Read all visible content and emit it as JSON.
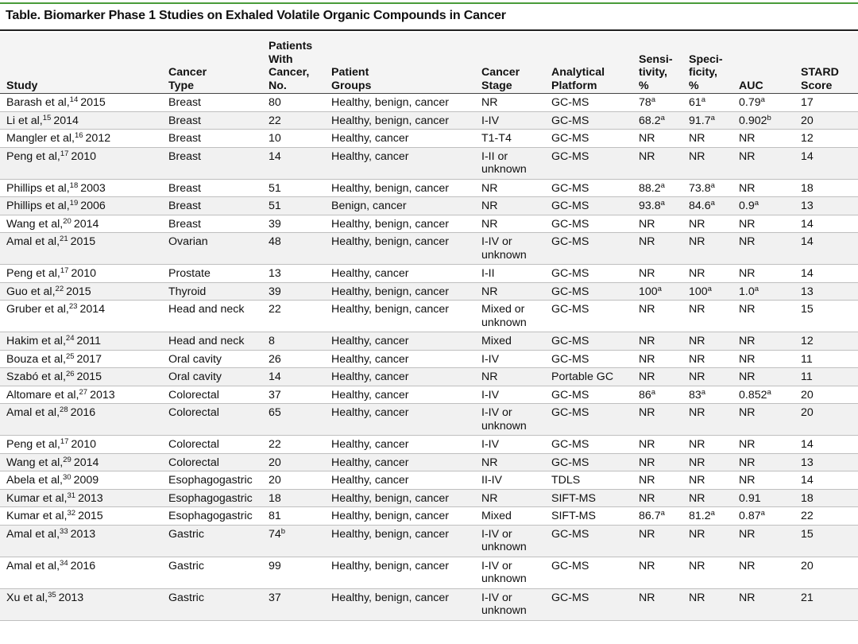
{
  "title": "Table. Biomarker Phase 1 Studies on Exhaled Volatile Organic Compounds in Cancer",
  "headers": [
    "Study",
    "Cancer\nType",
    "Patients\nWith\nCancer,\nNo.",
    "Patient\nGroups",
    "Cancer\nStage",
    "Analytical\nPlatform",
    "Sensi-\ntivity,\n%",
    "Speci-\nficity,\n%",
    "AUC",
    "STARD\nScore"
  ],
  "rows": [
    {
      "author": "Barash et al,",
      "ref": "14",
      "year": "2015",
      "type": "Breast",
      "patients": "80",
      "patients_sup": "",
      "groups": "Healthy, benign, cancer",
      "stage": "NR",
      "platform": "GC-MS",
      "sens": "78",
      "sens_sup": "a",
      "spec": "61",
      "spec_sup": "a",
      "auc": "0.79",
      "auc_sup": "a",
      "stard": "17"
    },
    {
      "author": "Li et al,",
      "ref": "15",
      "year": "2014",
      "type": "Breast",
      "patients": "22",
      "patients_sup": "",
      "groups": "Healthy, benign, cancer",
      "stage": "I-IV",
      "platform": "GC-MS",
      "sens": "68.2",
      "sens_sup": "a",
      "spec": "91.7",
      "spec_sup": "a",
      "auc": "0.902",
      "auc_sup": "b",
      "stard": "20"
    },
    {
      "author": "Mangler et al,",
      "ref": "16",
      "year": "2012",
      "type": "Breast",
      "patients": "10",
      "patients_sup": "",
      "groups": "Healthy, cancer",
      "stage": "T1-T4",
      "platform": "GC-MS",
      "sens": "NR",
      "sens_sup": "",
      "spec": "NR",
      "spec_sup": "",
      "auc": "NR",
      "auc_sup": "",
      "stard": "12"
    },
    {
      "author": "Peng et al,",
      "ref": "17",
      "year": "2010",
      "type": "Breast",
      "patients": "14",
      "patients_sup": "",
      "groups": "Healthy, cancer",
      "stage": "I-II or\nunknown",
      "platform": "GC-MS",
      "sens": "NR",
      "sens_sup": "",
      "spec": "NR",
      "spec_sup": "",
      "auc": "NR",
      "auc_sup": "",
      "stard": "14"
    },
    {
      "author": "Phillips et al,",
      "ref": "18",
      "year": "2003",
      "type": "Breast",
      "patients": "51",
      "patients_sup": "",
      "groups": "Healthy, benign, cancer",
      "stage": "NR",
      "platform": "GC-MS",
      "sens": "88.2",
      "sens_sup": "a",
      "spec": "73.8",
      "spec_sup": "a",
      "auc": "NR",
      "auc_sup": "",
      "stard": "18"
    },
    {
      "author": "Phillips et al,",
      "ref": "19",
      "year": "2006",
      "type": "Breast",
      "patients": "51",
      "patients_sup": "",
      "groups": "Benign, cancer",
      "stage": "NR",
      "platform": "GC-MS",
      "sens": "93.8",
      "sens_sup": "a",
      "spec": "84.6",
      "spec_sup": "a",
      "auc": "0.9",
      "auc_sup": "a",
      "stard": "13"
    },
    {
      "author": "Wang et al,",
      "ref": "20",
      "year": "2014",
      "type": "Breast",
      "patients": "39",
      "patients_sup": "",
      "groups": "Healthy, benign, cancer",
      "stage": "NR",
      "platform": "GC-MS",
      "sens": "NR",
      "sens_sup": "",
      "spec": "NR",
      "spec_sup": "",
      "auc": "NR",
      "auc_sup": "",
      "stard": "14"
    },
    {
      "author": "Amal et al,",
      "ref": "21",
      "year": "2015",
      "type": "Ovarian",
      "patients": "48",
      "patients_sup": "",
      "groups": "Healthy, benign, cancer",
      "stage": "I-IV or\nunknown",
      "platform": "GC-MS",
      "sens": "NR",
      "sens_sup": "",
      "spec": "NR",
      "spec_sup": "",
      "auc": "NR",
      "auc_sup": "",
      "stard": "14"
    },
    {
      "author": "Peng et al,",
      "ref": "17",
      "year": "2010",
      "type": "Prostate",
      "patients": "13",
      "patients_sup": "",
      "groups": "Healthy, cancer",
      "stage": "I-II",
      "platform": "GC-MS",
      "sens": "NR",
      "sens_sup": "",
      "spec": "NR",
      "spec_sup": "",
      "auc": "NR",
      "auc_sup": "",
      "stard": "14"
    },
    {
      "author": "Guo et al,",
      "ref": "22",
      "year": "2015",
      "type": "Thyroid",
      "patients": "39",
      "patients_sup": "",
      "groups": "Healthy, benign, cancer",
      "stage": "NR",
      "platform": "GC-MS",
      "sens": "100",
      "sens_sup": "a",
      "spec": "100",
      "spec_sup": "a",
      "auc": "1.0",
      "auc_sup": "a",
      "stard": "13"
    },
    {
      "author": "Gruber et al,",
      "ref": "23",
      "year": "2014",
      "type": "Head and neck",
      "patients": "22",
      "patients_sup": "",
      "groups": "Healthy, benign, cancer",
      "stage": "Mixed or\nunknown",
      "platform": "GC-MS",
      "sens": "NR",
      "sens_sup": "",
      "spec": "NR",
      "spec_sup": "",
      "auc": "NR",
      "auc_sup": "",
      "stard": "15"
    },
    {
      "author": "Hakim et al,",
      "ref": "24",
      "year": "2011",
      "type": "Head and neck",
      "patients": "8",
      "patients_sup": "",
      "groups": "Healthy, cancer",
      "stage": "Mixed",
      "platform": "GC-MS",
      "sens": "NR",
      "sens_sup": "",
      "spec": "NR",
      "spec_sup": "",
      "auc": "NR",
      "auc_sup": "",
      "stard": "12"
    },
    {
      "author": "Bouza et al,",
      "ref": "25",
      "year": "2017",
      "type": "Oral cavity",
      "patients": "26",
      "patients_sup": "",
      "groups": "Healthy, cancer",
      "stage": "I-IV",
      "platform": "GC-MS",
      "sens": "NR",
      "sens_sup": "",
      "spec": "NR",
      "spec_sup": "",
      "auc": "NR",
      "auc_sup": "",
      "stard": "11"
    },
    {
      "author": "Szabó et al,",
      "ref": "26",
      "year": "2015",
      "type": "Oral cavity",
      "patients": "14",
      "patients_sup": "",
      "groups": "Healthy, cancer",
      "stage": "NR",
      "platform": "Portable GC",
      "sens": "NR",
      "sens_sup": "",
      "spec": "NR",
      "spec_sup": "",
      "auc": "NR",
      "auc_sup": "",
      "stard": "11"
    },
    {
      "author": "Altomare et al,",
      "ref": "27",
      "year": "2013",
      "type": "Colorectal",
      "patients": "37",
      "patients_sup": "",
      "groups": "Healthy, cancer",
      "stage": "I-IV",
      "platform": "GC-MS",
      "sens": "86",
      "sens_sup": "a",
      "spec": "83",
      "spec_sup": "a",
      "auc": "0.852",
      "auc_sup": "a",
      "stard": "20"
    },
    {
      "author": "Amal et al,",
      "ref": "28",
      "year": "2016",
      "type": "Colorectal",
      "patients": "65",
      "patients_sup": "",
      "groups": "Healthy, cancer",
      "stage": "I-IV or\nunknown",
      "platform": "GC-MS",
      "sens": "NR",
      "sens_sup": "",
      "spec": "NR",
      "spec_sup": "",
      "auc": "NR",
      "auc_sup": "",
      "stard": "20"
    },
    {
      "author": "Peng et al,",
      "ref": "17",
      "year": "2010",
      "type": "Colorectal",
      "patients": "22",
      "patients_sup": "",
      "groups": "Healthy, cancer",
      "stage": "I-IV",
      "platform": "GC-MS",
      "sens": "NR",
      "sens_sup": "",
      "spec": "NR",
      "spec_sup": "",
      "auc": "NR",
      "auc_sup": "",
      "stard": "14"
    },
    {
      "author": "Wang et al,",
      "ref": "29",
      "year": "2014",
      "type": "Colorectal",
      "patients": "20",
      "patients_sup": "",
      "groups": "Healthy, cancer",
      "stage": "NR",
      "platform": "GC-MS",
      "sens": "NR",
      "sens_sup": "",
      "spec": "NR",
      "spec_sup": "",
      "auc": "NR",
      "auc_sup": "",
      "stard": "13"
    },
    {
      "author": "Abela et al,",
      "ref": "30",
      "year": "2009",
      "type": "Esophagogastric",
      "patients": "20",
      "patients_sup": "",
      "groups": "Healthy, cancer",
      "stage": "II-IV",
      "platform": "TDLS",
      "sens": "NR",
      "sens_sup": "",
      "spec": "NR",
      "spec_sup": "",
      "auc": "NR",
      "auc_sup": "",
      "stard": "14"
    },
    {
      "author": "Kumar et al,",
      "ref": "31",
      "year": "2013",
      "type": "Esophagogastric",
      "patients": "18",
      "patients_sup": "",
      "groups": "Healthy, benign, cancer",
      "stage": "NR",
      "platform": "SIFT-MS",
      "sens": "NR",
      "sens_sup": "",
      "spec": "NR",
      "spec_sup": "",
      "auc": "0.91",
      "auc_sup": "",
      "stard": "18"
    },
    {
      "author": "Kumar et al,",
      "ref": "32",
      "year": "2015",
      "type": "Esophagogastric",
      "patients": "81",
      "patients_sup": "",
      "groups": "Healthy, benign, cancer",
      "stage": "Mixed",
      "platform": "SIFT-MS",
      "sens": "86.7",
      "sens_sup": "a",
      "spec": "81.2",
      "spec_sup": "a",
      "auc": "0.87",
      "auc_sup": "a",
      "stard": "22"
    },
    {
      "author": "Amal et al,",
      "ref": "33",
      "year": "2013",
      "type": "Gastric",
      "patients": "74",
      "patients_sup": "b",
      "groups": "Healthy, benign, cancer",
      "stage": "I-IV or\nunknown",
      "platform": "GC-MS",
      "sens": "NR",
      "sens_sup": "",
      "spec": "NR",
      "spec_sup": "",
      "auc": "NR",
      "auc_sup": "",
      "stard": "15"
    },
    {
      "author": "Amal et al,",
      "ref": "34",
      "year": "2016",
      "type": "Gastric",
      "patients": "99",
      "patients_sup": "",
      "groups": "Healthy, benign, cancer",
      "stage": "I-IV or\nunknown",
      "platform": "GC-MS",
      "sens": "NR",
      "sens_sup": "",
      "spec": "NR",
      "spec_sup": "",
      "auc": "NR",
      "auc_sup": "",
      "stard": "20"
    },
    {
      "author": "Xu et al,",
      "ref": "35",
      "year": "2013",
      "type": "Gastric",
      "patients": "37",
      "patients_sup": "",
      "groups": "Healthy, benign, cancer",
      "stage": "I-IV or\nunknown",
      "platform": "GC-MS",
      "sens": "NR",
      "sens_sup": "",
      "spec": "NR",
      "spec_sup": "",
      "auc": "NR",
      "auc_sup": "",
      "stard": "21"
    }
  ]
}
